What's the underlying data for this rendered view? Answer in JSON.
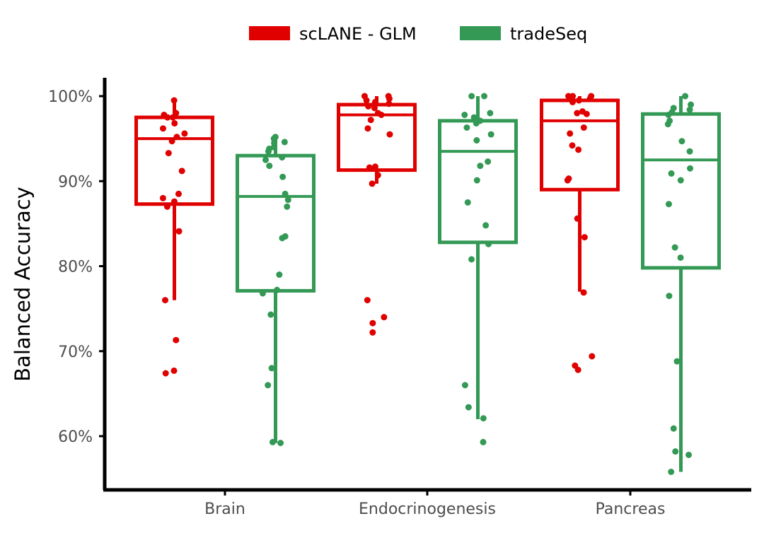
{
  "chart_data": {
    "type": "boxplot",
    "ylabel": "Balanced Accuracy",
    "xlabel": "",
    "categories": [
      "Brain",
      "Endocrinogenesis",
      "Pancreas"
    ],
    "yticks": [
      0.6,
      0.7,
      0.8,
      0.9,
      1.0
    ],
    "ytick_labels": [
      "60%",
      "70%",
      "80%",
      "90%",
      "100%"
    ],
    "ylim": [
      0.54,
      1.02
    ],
    "legend_position": "top",
    "series": [
      {
        "name": "scLANE - GLM",
        "color": "#e00000",
        "boxes": [
          {
            "category": "Brain",
            "q1": 0.873,
            "median": 0.95,
            "q3": 0.975,
            "whisker_low": 0.76,
            "whisker_high": 0.993
          },
          {
            "category": "Endocrinogenesis",
            "q1": 0.913,
            "median": 0.978,
            "q3": 0.99,
            "whisker_low": 0.897,
            "whisker_high": 1.0
          },
          {
            "category": "Pancreas",
            "q1": 0.89,
            "median": 0.971,
            "q3": 0.995,
            "whisker_low": 0.77,
            "whisker_high": 1.0
          }
        ],
        "points": [
          [
            0.995,
            0.98,
            0.978,
            0.975,
            0.975,
            0.968,
            0.962,
            0.956,
            0.952,
            0.947,
            0.933,
            0.912,
            0.885,
            0.88,
            0.876,
            0.87,
            0.841,
            0.76,
            0.713,
            0.677,
            0.674
          ],
          [
            1.0,
            1.0,
            0.997,
            0.995,
            0.993,
            0.991,
            0.988,
            0.986,
            0.98,
            0.978,
            0.972,
            0.962,
            0.955,
            0.917,
            0.916,
            0.907,
            0.897,
            0.76,
            0.74,
            0.733,
            0.722
          ],
          [
            1.0,
            1.0,
            1.0,
            0.997,
            0.995,
            0.993,
            0.982,
            0.98,
            0.979,
            0.963,
            0.956,
            0.942,
            0.937,
            0.903,
            0.901,
            0.856,
            0.834,
            0.769,
            0.694,
            0.683,
            0.678
          ]
        ]
      },
      {
        "name": "tradeSeq",
        "color": "#339955",
        "boxes": [
          {
            "category": "Brain",
            "q1": 0.771,
            "median": 0.882,
            "q3": 0.93,
            "whisker_low": 0.592,
            "whisker_high": 0.952
          },
          {
            "category": "Endocrinogenesis",
            "q1": 0.828,
            "median": 0.935,
            "q3": 0.971,
            "whisker_low": 0.62,
            "whisker_high": 1.0
          },
          {
            "category": "Pancreas",
            "q1": 0.798,
            "median": 0.925,
            "q3": 0.979,
            "whisker_low": 0.558,
            "whisker_high": 1.0
          }
        ],
        "points": [
          [
            0.952,
            0.95,
            0.946,
            0.945,
            0.94,
            0.938,
            0.935,
            0.928,
            0.925,
            0.918,
            0.905,
            0.885,
            0.878,
            0.87,
            0.835,
            0.833,
            0.79,
            0.772,
            0.768,
            0.743,
            0.68,
            0.66,
            0.593,
            0.592
          ],
          [
            1.0,
            1.0,
            0.98,
            0.978,
            0.975,
            0.971,
            0.968,
            0.963,
            0.955,
            0.948,
            0.923,
            0.918,
            0.901,
            0.875,
            0.848,
            0.826,
            0.808,
            0.66,
            0.634,
            0.621,
            0.593
          ],
          [
            1.0,
            0.99,
            0.986,
            0.984,
            0.981,
            0.978,
            0.971,
            0.967,
            0.947,
            0.935,
            0.915,
            0.909,
            0.901,
            0.873,
            0.822,
            0.81,
            0.765,
            0.688,
            0.609,
            0.582,
            0.578,
            0.558
          ]
        ]
      }
    ]
  }
}
